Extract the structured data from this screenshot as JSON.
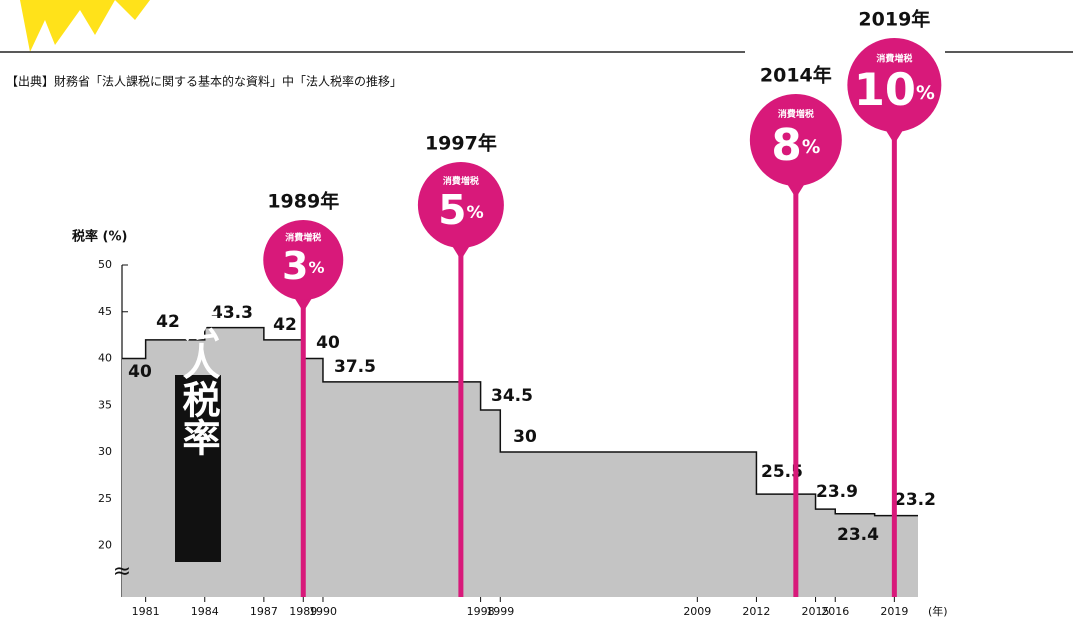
{
  "chart_data": {
    "type": "step-area",
    "source": "【出典】財務省「法人課税に関する基本的な資料」中「法人税率の推移」",
    "y_label": "税率 (%)",
    "x_label": "(年)",
    "side_label": "法人税率",
    "x": [
      1979.8,
      1981,
      1984,
      1987,
      1989,
      1990,
      1998,
      1999,
      2012,
      2015,
      2016,
      2018
    ],
    "values": [
      40,
      42,
      43.3,
      42,
      40,
      37.5,
      34.5,
      30,
      25.5,
      23.9,
      23.4,
      23.2
    ],
    "color": "#c4c4c4",
    "xlim": [
      1979.8,
      2020.2
    ],
    "xticks": [
      1981,
      1984,
      1987,
      1989,
      1990,
      1998,
      1999,
      2009,
      2012,
      2015,
      2016,
      2019
    ],
    "ylim": [
      14.5,
      50
    ],
    "yticks": [
      20,
      25,
      30,
      35,
      40,
      45,
      50
    ],
    "events": {
      "name": "消費増税",
      "x": [
        1989,
        1997,
        2014,
        2019
      ],
      "x_labels": [
        "1989年",
        "1997年",
        "2014年",
        "2019年"
      ],
      "values": [
        3,
        5,
        8,
        10
      ],
      "value_labels": [
        "3%",
        "5%",
        "8%",
        "10%"
      ],
      "color": "#d8197a"
    }
  }
}
